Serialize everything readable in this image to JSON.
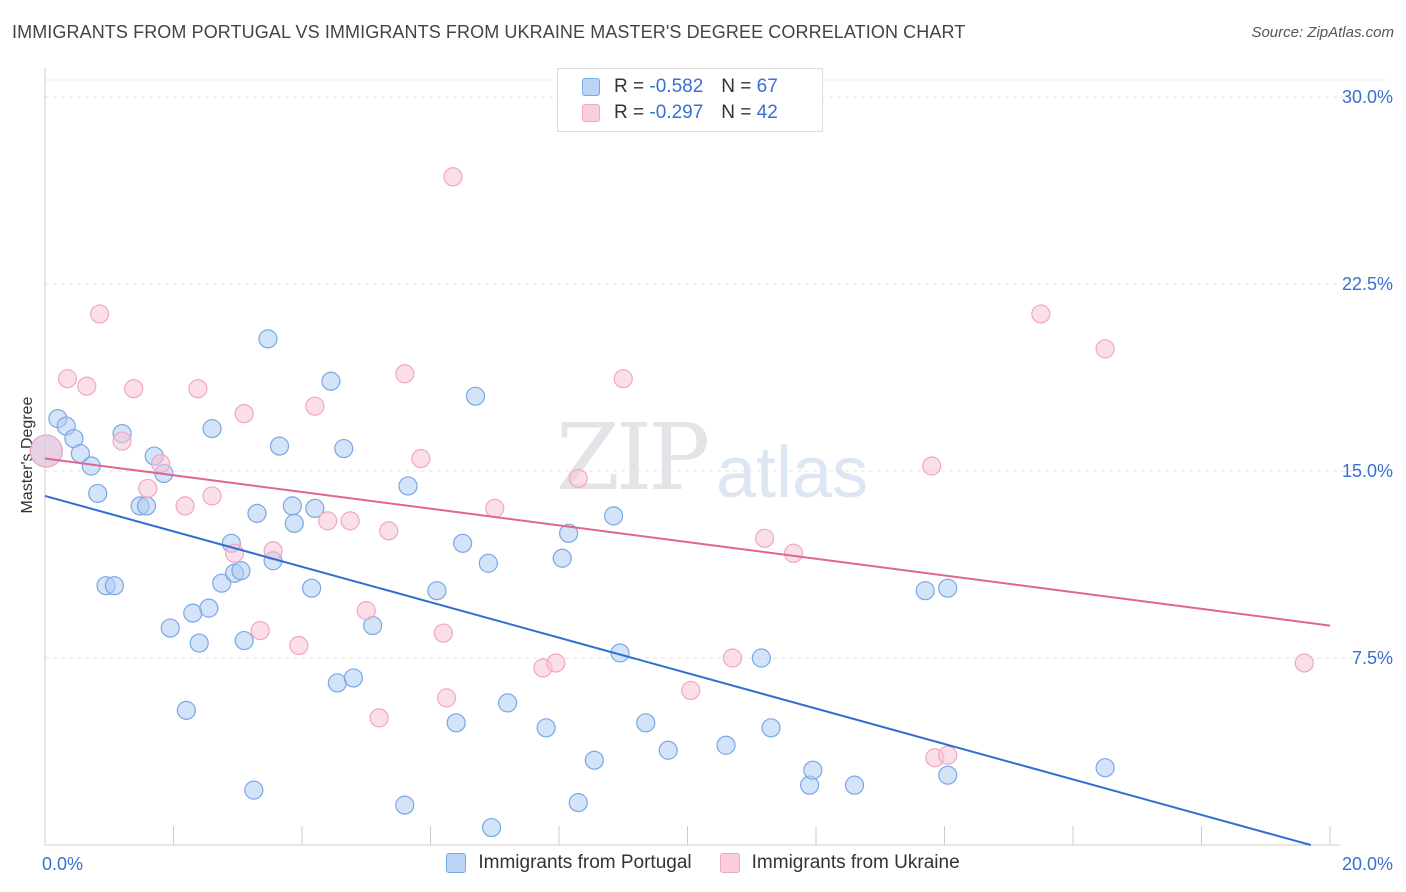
{
  "title": "IMMIGRANTS FROM PORTUGAL VS IMMIGRANTS FROM UKRAINE MASTER'S DEGREE CORRELATION CHART",
  "source": "Source: ZipAtlas.com",
  "watermark": {
    "zip": "ZIP",
    "atlas": "atlas"
  },
  "legend": {
    "portugal": {
      "r_label": "R = ",
      "r_value": "-0.582",
      "n_label": "N = ",
      "n_value": "67"
    },
    "ukraine": {
      "r_label": "R = ",
      "r_value": "-0.297",
      "n_label": "N = ",
      "n_value": "42"
    }
  },
  "chart_data": {
    "type": "scatter",
    "xlabel": "",
    "ylabel": "Master's Degree",
    "xlim": [
      0,
      20
    ],
    "ylim": [
      0,
      30
    ],
    "x_tick_labels": {
      "min": "0.0%",
      "max": "20.0%"
    },
    "y_ticks": [
      {
        "value": 7.5,
        "label": "7.5%"
      },
      {
        "value": 15,
        "label": "15.0%"
      },
      {
        "value": 22.5,
        "label": "22.5%"
      },
      {
        "value": 30,
        "label": "30.0%"
      }
    ],
    "grid": true,
    "legend_position": "top-center",
    "series": [
      {
        "name": "Immigrants from Portugal",
        "color": "#7aa7e6",
        "line_color": "#2f6fd0",
        "trend": {
          "x": [
            0,
            19.7
          ],
          "y": [
            14.0,
            0.0
          ]
        },
        "points": [
          [
            0.02,
            15.8
          ],
          [
            0.2,
            17.1
          ],
          [
            0.33,
            16.8
          ],
          [
            0.45,
            16.3
          ],
          [
            0.55,
            15.7
          ],
          [
            0.72,
            15.2
          ],
          [
            0.82,
            14.1
          ],
          [
            0.95,
            10.4
          ],
          [
            1.08,
            10.4
          ],
          [
            1.2,
            16.5
          ],
          [
            1.48,
            13.6
          ],
          [
            1.58,
            13.6
          ],
          [
            1.7,
            15.6
          ],
          [
            1.85,
            14.9
          ],
          [
            1.95,
            8.7
          ],
          [
            2.2,
            5.4
          ],
          [
            2.3,
            9.3
          ],
          [
            2.4,
            8.1
          ],
          [
            2.6,
            16.7
          ],
          [
            2.55,
            9.5
          ],
          [
            2.75,
            10.5
          ],
          [
            2.9,
            12.1
          ],
          [
            2.95,
            10.9
          ],
          [
            3.05,
            11.0
          ],
          [
            3.1,
            8.2
          ],
          [
            3.25,
            2.2
          ],
          [
            3.3,
            13.3
          ],
          [
            3.47,
            20.3
          ],
          [
            3.55,
            11.4
          ],
          [
            3.65,
            16.0
          ],
          [
            3.85,
            13.6
          ],
          [
            3.88,
            12.9
          ],
          [
            4.2,
            13.5
          ],
          [
            4.15,
            10.3
          ],
          [
            4.45,
            18.6
          ],
          [
            4.55,
            6.5
          ],
          [
            4.65,
            15.9
          ],
          [
            4.8,
            6.7
          ],
          [
            5.1,
            8.8
          ],
          [
            5.6,
            1.6
          ],
          [
            5.65,
            14.4
          ],
          [
            6.1,
            10.2
          ],
          [
            6.4,
            4.9
          ],
          [
            6.5,
            12.1
          ],
          [
            6.7,
            18.0
          ],
          [
            6.9,
            11.3
          ],
          [
            6.95,
            0.7
          ],
          [
            7.2,
            5.7
          ],
          [
            7.8,
            4.7
          ],
          [
            8.05,
            11.5
          ],
          [
            8.15,
            12.5
          ],
          [
            8.3,
            1.7
          ],
          [
            8.55,
            3.4
          ],
          [
            8.95,
            7.7
          ],
          [
            8.85,
            13.2
          ],
          [
            9.35,
            4.9
          ],
          [
            9.7,
            3.8
          ],
          [
            10.6,
            4.0
          ],
          [
            11.15,
            7.5
          ],
          [
            11.3,
            4.7
          ],
          [
            11.9,
            2.4
          ],
          [
            11.95,
            3.0
          ],
          [
            12.6,
            2.4
          ],
          [
            13.7,
            10.2
          ],
          [
            14.05,
            2.8
          ],
          [
            14.05,
            10.3
          ],
          [
            16.5,
            3.1
          ]
        ]
      },
      {
        "name": "Immigrants from Ukraine",
        "color": "#f3a6c0",
        "line_color": "#e06690",
        "trend": {
          "x": [
            0,
            20.0
          ],
          "y": [
            15.5,
            8.8
          ]
        },
        "points": [
          [
            0.02,
            15.8
          ],
          [
            0.35,
            18.7
          ],
          [
            0.65,
            18.4
          ],
          [
            0.85,
            21.3
          ],
          [
            1.2,
            16.2
          ],
          [
            1.38,
            18.3
          ],
          [
            1.6,
            14.3
          ],
          [
            1.8,
            15.3
          ],
          [
            2.18,
            13.6
          ],
          [
            2.38,
            18.3
          ],
          [
            2.6,
            14.0
          ],
          [
            2.95,
            11.7
          ],
          [
            3.1,
            17.3
          ],
          [
            3.35,
            8.6
          ],
          [
            3.55,
            11.8
          ],
          [
            3.95,
            8.0
          ],
          [
            4.2,
            17.6
          ],
          [
            4.4,
            13.0
          ],
          [
            4.75,
            13.0
          ],
          [
            5.0,
            9.4
          ],
          [
            5.2,
            5.1
          ],
          [
            5.35,
            12.6
          ],
          [
            5.6,
            18.9
          ],
          [
            5.85,
            15.5
          ],
          [
            6.2,
            8.5
          ],
          [
            6.25,
            5.9
          ],
          [
            6.35,
            26.8
          ],
          [
            7.0,
            13.5
          ],
          [
            7.75,
            7.1
          ],
          [
            7.95,
            7.3
          ],
          [
            8.3,
            14.7
          ],
          [
            9.0,
            18.7
          ],
          [
            10.05,
            6.2
          ],
          [
            10.7,
            7.5
          ],
          [
            11.2,
            12.3
          ],
          [
            11.65,
            11.7
          ],
          [
            13.8,
            15.2
          ],
          [
            13.85,
            3.5
          ],
          [
            14.05,
            3.6
          ],
          [
            15.5,
            21.3
          ],
          [
            16.5,
            19.9
          ],
          [
            19.6,
            7.3
          ]
        ]
      }
    ]
  }
}
